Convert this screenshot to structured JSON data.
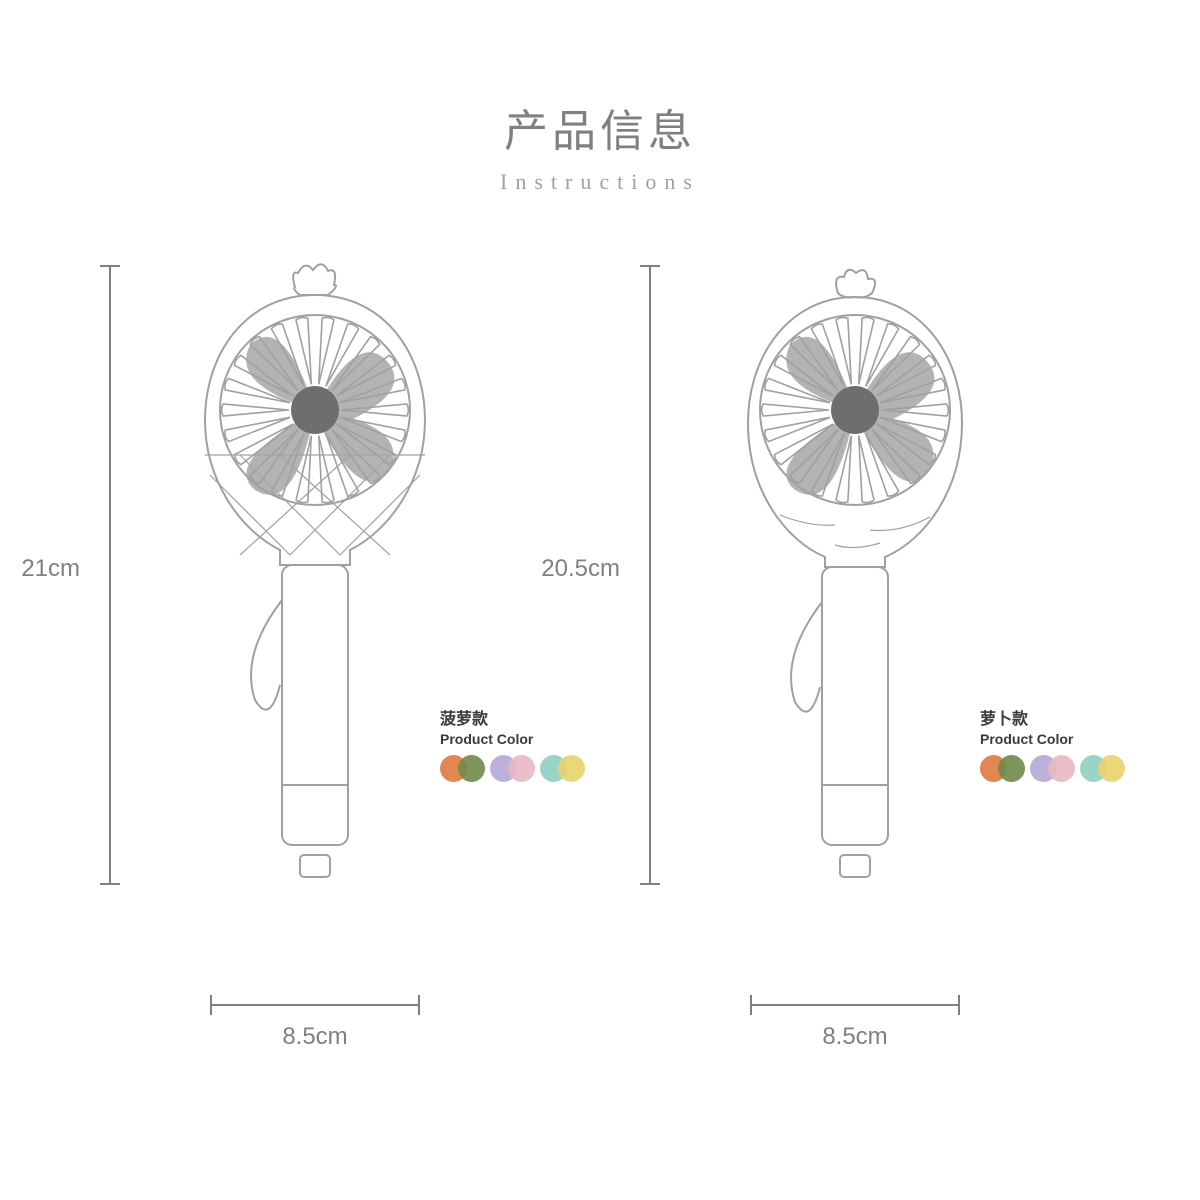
{
  "title": "产品信息",
  "subtitle": "Instructions",
  "line_color": "#808080",
  "outline_color": "#a0a0a0",
  "blade_color": "#a6a6a6",
  "hub_color": "#6e6e6e",
  "text_color": "#808080",
  "label_color": "#3a3a3a",
  "background": "#ffffff",
  "products": [
    {
      "id": "pineapple",
      "height_label": "21cm",
      "width_label": "8.5cm",
      "variant_cn": "菠萝款",
      "variant_en": "Product Color",
      "top_ornament": "pineapple",
      "body_pattern": "diamond",
      "colors": [
        "#e07a3f",
        "#708a4a",
        "#b2a8d6",
        "#e9b8c4",
        "#8ed0c0",
        "#e9d36b"
      ]
    },
    {
      "id": "radish",
      "height_label": "20.5cm",
      "width_label": "8.5cm",
      "variant_cn": "萝卜款",
      "variant_en": "Product Color",
      "top_ornament": "radish",
      "body_pattern": "lines",
      "colors": [
        "#e07a3f",
        "#708a4a",
        "#b2a8d6",
        "#e9b8c4",
        "#8ed0c0",
        "#e9d36b"
      ]
    }
  ]
}
